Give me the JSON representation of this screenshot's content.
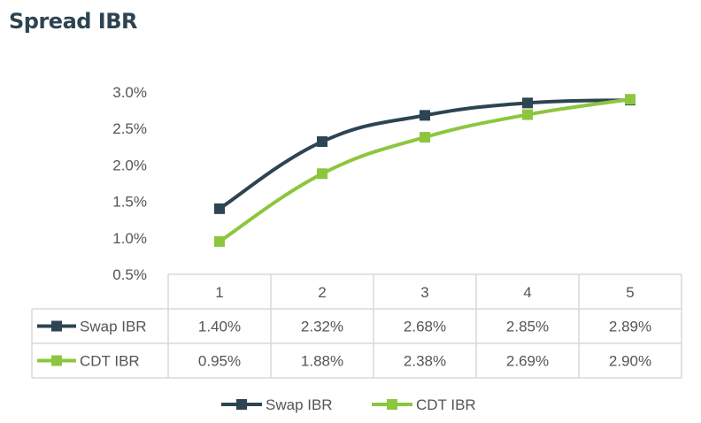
{
  "title": "Spread IBR",
  "colors": {
    "swap": "#2d4452",
    "cdt": "#8cc63f",
    "grid": "#d9d9d9",
    "text": "#555555"
  },
  "chart_data": {
    "type": "line",
    "title": "Spread IBR",
    "x": [
      "1",
      "2",
      "3",
      "4",
      "5"
    ],
    "ylim": [
      0.5,
      3.0
    ],
    "yticks": [
      "0.5%",
      "1.0%",
      "1.5%",
      "2.0%",
      "2.5%",
      "3.0%"
    ],
    "grid": false,
    "legend": "bottom",
    "series": [
      {
        "name": "Swap IBR",
        "values": [
          1.4,
          2.32,
          2.68,
          2.85,
          2.89
        ],
        "labels": [
          "1.40%",
          "2.32%",
          "2.68%",
          "2.85%",
          "2.89%"
        ],
        "color": "#2d4452"
      },
      {
        "name": "CDT IBR",
        "values": [
          0.95,
          1.88,
          2.38,
          2.69,
          2.9
        ],
        "labels": [
          "0.95%",
          "1.88%",
          "2.38%",
          "2.69%",
          "2.90%"
        ],
        "color": "#8cc63f"
      }
    ]
  }
}
